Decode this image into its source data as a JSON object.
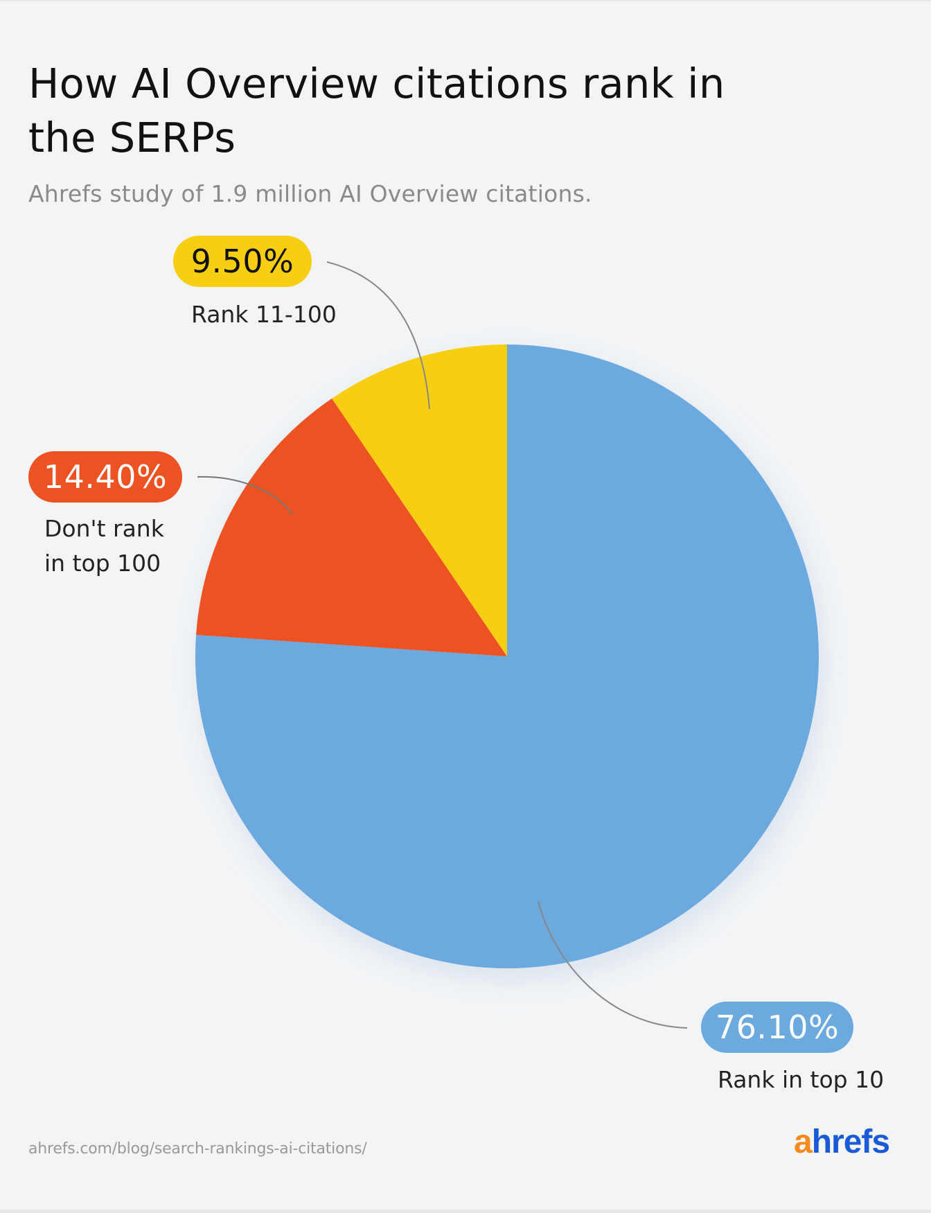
{
  "header": {
    "title": "How AI Overview citations rank in the SERPs",
    "subtitle": "Ahrefs study of 1.9 million AI Overview citations."
  },
  "slices": [
    {
      "label": "Rank in top 10",
      "value_label": "76.10%",
      "value": 76.1,
      "color": "#6ba9df"
    },
    {
      "label": "Don't rank in top 100",
      "label_line1": "Don't rank",
      "label_line2": "in top 100",
      "value_label": "14.40%",
      "value": 14.4,
      "color": "#ed5322"
    },
    {
      "label": "Rank 11-100",
      "value_label": "9.50%",
      "value": 9.5,
      "color": "#f8ce12"
    }
  ],
  "footer": {
    "source_url": "ahrefs.com/blog/search-rankings-ai-citations/",
    "logo_a": "a",
    "logo_rest": "hrefs"
  },
  "chart_data": {
    "type": "pie",
    "title": "How AI Overview citations rank in the SERPs",
    "subtitle": "Ahrefs study of 1.9 million AI Overview citations.",
    "categories": [
      "Rank in top 10",
      "Don't rank in top 100",
      "Rank 11-100"
    ],
    "values": [
      76.1,
      14.4,
      9.5
    ],
    "unit": "%",
    "colors": [
      "#6ba9df",
      "#ed5322",
      "#f8ce12"
    ],
    "start_angle": "12 o'clock",
    "legend": "none (callout labels)",
    "source": "ahrefs.com/blog/search-rankings-ai-citations/"
  }
}
